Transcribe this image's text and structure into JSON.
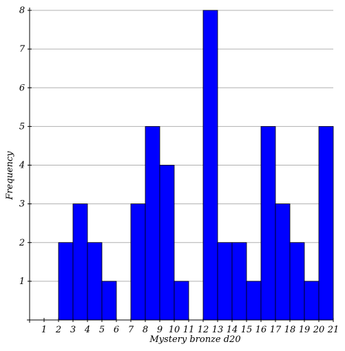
{
  "chart_data": {
    "type": "bar",
    "title": "",
    "xlabel": "Mystery bronze d20",
    "ylabel": "Frequency",
    "x_ticks": [
      1,
      2,
      3,
      4,
      5,
      6,
      7,
      8,
      9,
      10,
      11,
      12,
      13,
      14,
      15,
      16,
      17,
      18,
      19,
      20,
      21
    ],
    "y_ticks": [
      1,
      2,
      3,
      4,
      5,
      6,
      7,
      8
    ],
    "xlim": [
      0,
      21
    ],
    "ylim": [
      0,
      8
    ],
    "grid": true,
    "bar_color": "#0000ff",
    "bins": [
      {
        "start": 2,
        "end": 3,
        "value": 2
      },
      {
        "start": 3,
        "end": 4,
        "value": 3
      },
      {
        "start": 4,
        "end": 5,
        "value": 2
      },
      {
        "start": 5,
        "end": 6,
        "value": 1
      },
      {
        "start": 6,
        "end": 7,
        "value": 0
      },
      {
        "start": 7,
        "end": 8,
        "value": 3
      },
      {
        "start": 8,
        "end": 9,
        "value": 5
      },
      {
        "start": 9,
        "end": 10,
        "value": 4
      },
      {
        "start": 10,
        "end": 11,
        "value": 1
      },
      {
        "start": 11,
        "end": 12,
        "value": 0
      },
      {
        "start": 12,
        "end": 13,
        "value": 8
      },
      {
        "start": 13,
        "end": 14,
        "value": 2
      },
      {
        "start": 14,
        "end": 15,
        "value": 2
      },
      {
        "start": 15,
        "end": 16,
        "value": 1
      },
      {
        "start": 16,
        "end": 17,
        "value": 5
      },
      {
        "start": 17,
        "end": 18,
        "value": 3
      },
      {
        "start": 18,
        "end": 19,
        "value": 2
      },
      {
        "start": 19,
        "end": 20,
        "value": 1
      },
      {
        "start": 20,
        "end": 21,
        "value": 5
      }
    ]
  }
}
